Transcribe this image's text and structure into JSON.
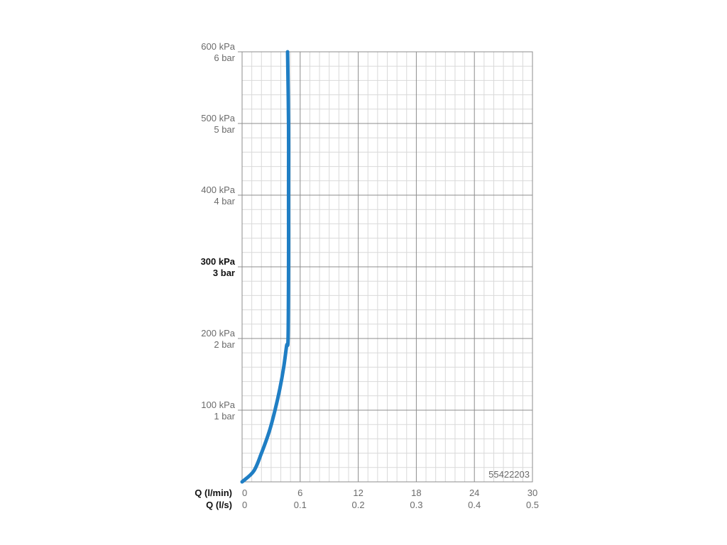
{
  "chart_data": {
    "type": "line",
    "title": "",
    "colors": {
      "curve": "#1f7ec4",
      "major_grid": "#8c8c8c",
      "minor_grid": "#d9d9d9",
      "label": "#6b6b6b",
      "label_bold": "#111111"
    },
    "grid": true,
    "x_axes": [
      {
        "name": "Q (l/min)",
        "ticks": [
          "0",
          "6",
          "12",
          "18",
          "24",
          "30"
        ],
        "range": [
          0,
          30
        ]
      },
      {
        "name": "Q (l/s)",
        "ticks": [
          "0",
          "0.1",
          "0.2",
          "0.3",
          "0.4",
          "0.5"
        ],
        "range": [
          0,
          0.5
        ]
      }
    ],
    "y_axis": {
      "range": [
        0,
        600
      ],
      "unit": "kPa",
      "ticks": [
        {
          "value": 100,
          "kpa": "100 kPa",
          "bar": "1 bar",
          "bold": false
        },
        {
          "value": 200,
          "kpa": "200 kPa",
          "bar": "2 bar",
          "bold": false
        },
        {
          "value": 300,
          "kpa": "300 kPa",
          "bar": "3 bar",
          "bold": true
        },
        {
          "value": 400,
          "kpa": "400 kPa",
          "bar": "4 bar",
          "bold": false
        },
        {
          "value": 500,
          "kpa": "500 kPa",
          "bar": "5 bar",
          "bold": false
        },
        {
          "value": 600,
          "kpa": "600 kPa",
          "bar": "6 bar",
          "bold": false
        }
      ]
    },
    "series": [
      {
        "points": [
          [
            0,
            0
          ],
          [
            1.2,
            15
          ],
          [
            2.0,
            40
          ],
          [
            2.8,
            70
          ],
          [
            3.4,
            100
          ],
          [
            3.9,
            130
          ],
          [
            4.3,
            160
          ],
          [
            4.6,
            190
          ],
          [
            4.75,
            200
          ],
          [
            4.8,
            300
          ],
          [
            4.8,
            400
          ],
          [
            4.8,
            500
          ],
          [
            4.7,
            600
          ]
        ]
      }
    ],
    "annotation": "55422203"
  }
}
